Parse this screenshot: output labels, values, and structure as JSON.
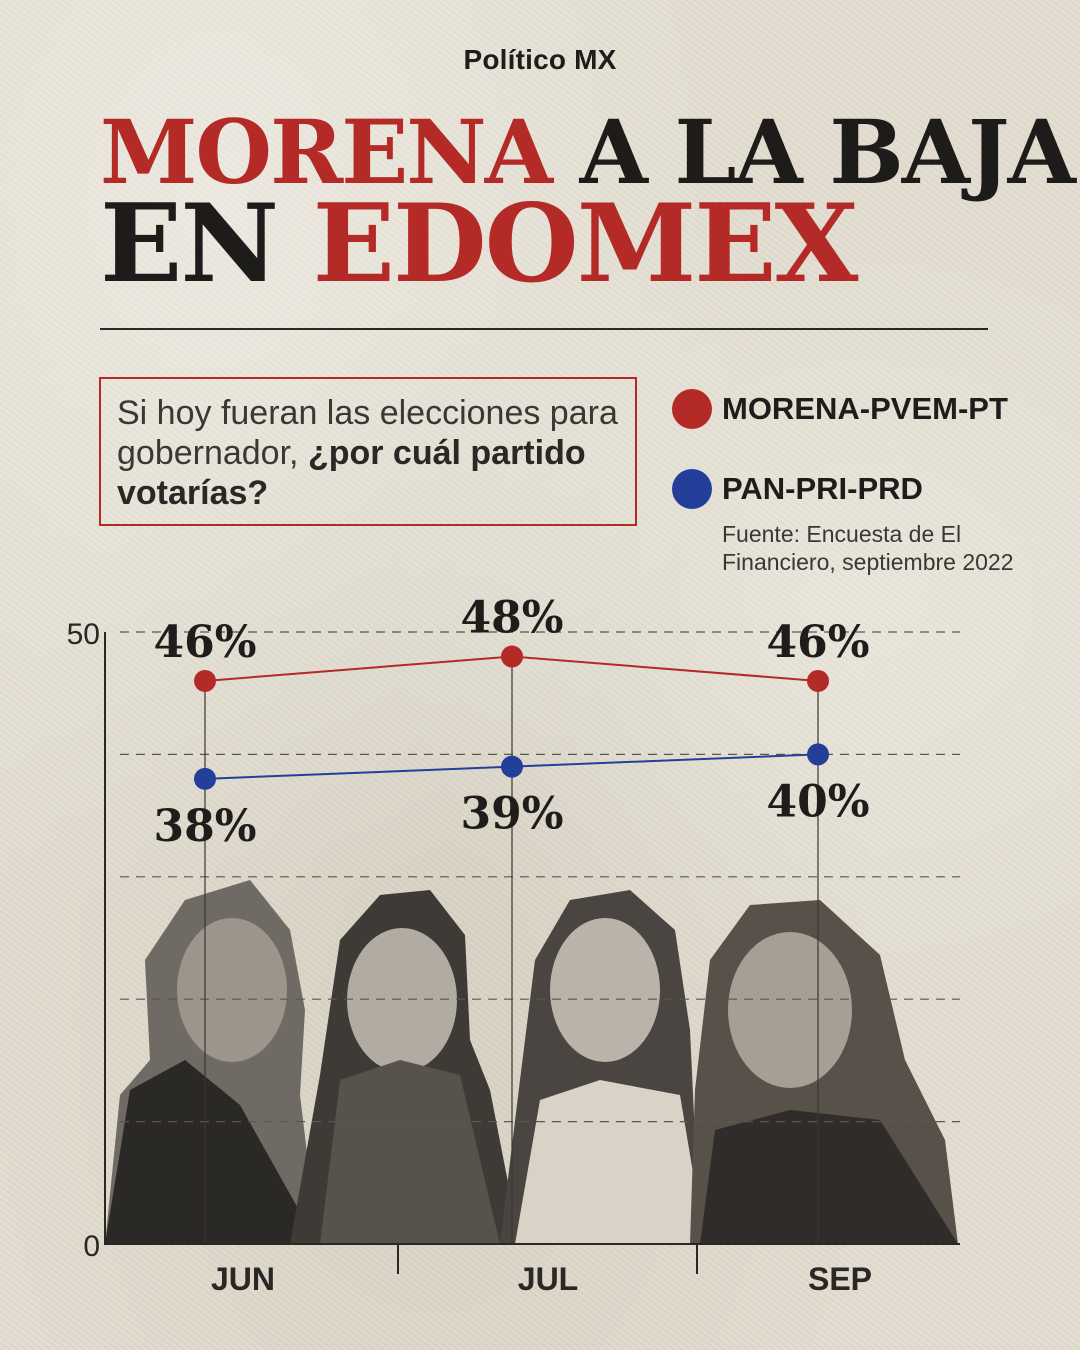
{
  "brand": "Político MX",
  "headline": {
    "line1_red": "MORENA",
    "line1_dark": "A LA BAJA",
    "line2_dark": "EN",
    "line2_red": "EDOMEX"
  },
  "question": {
    "text_normal": "Si hoy fueran las elecciones para gobernador, ",
    "text_bold": "¿por cuál partido votarías?"
  },
  "legend": [
    {
      "label": "MORENA-PVEM-PT",
      "color": "#b42a26"
    },
    {
      "label": "PAN-PRI-PRD",
      "color": "#243f99"
    }
  ],
  "source": {
    "label": "Fuente:",
    "text": "Encuesta de El Financiero, septiembre 2022"
  },
  "colors": {
    "accent_red": "#b42a26",
    "accent_blue": "#243f99",
    "background": "#e2ddd0"
  },
  "photo_icon": "candidates-photo-collage",
  "chart_data": {
    "type": "line",
    "categories": [
      "JUN",
      "JUL",
      "SEP"
    ],
    "series": [
      {
        "name": "MORENA-PVEM-PT",
        "color": "#b42a26",
        "values": [
          46,
          48,
          46
        ],
        "labels": [
          "46%",
          "48%",
          "46%"
        ]
      },
      {
        "name": "PAN-PRI-PRD",
        "color": "#243f99",
        "values": [
          38,
          39,
          40
        ],
        "labels": [
          "38%",
          "39%",
          "40%"
        ]
      }
    ],
    "ylim": [
      0,
      50
    ],
    "ytick_labels": [
      "0",
      "50"
    ],
    "grid": true
  }
}
